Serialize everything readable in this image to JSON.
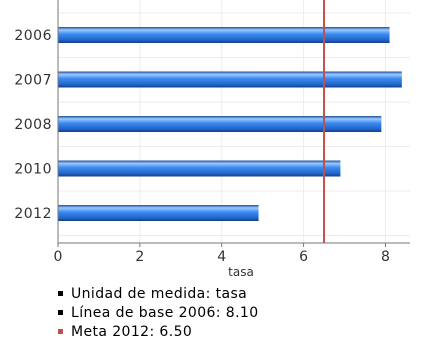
{
  "chart_data": {
    "type": "bar",
    "orientation": "horizontal",
    "title": "",
    "categories": [
      "2006",
      "2007",
      "2008",
      "2010",
      "2012"
    ],
    "values": [
      8.1,
      8.4,
      7.9,
      6.9,
      4.9
    ],
    "xlabel": "tasa",
    "ylabel": "",
    "xlim": [
      0,
      8.6
    ],
    "xticks": [
      "0",
      "2",
      "4",
      "6",
      "8"
    ],
    "grid": true,
    "reference_line": {
      "value": 6.5,
      "color": "#c0504d"
    },
    "bar_color": "#2f7be0"
  },
  "legend": {
    "items": [
      {
        "label": "Unidad de medida: tasa",
        "color": "#000000"
      },
      {
        "label": "Línea de base 2006: 8.10",
        "color": "#000000"
      },
      {
        "label": "Meta 2012: 6.50",
        "color": "#c0504d"
      }
    ]
  }
}
